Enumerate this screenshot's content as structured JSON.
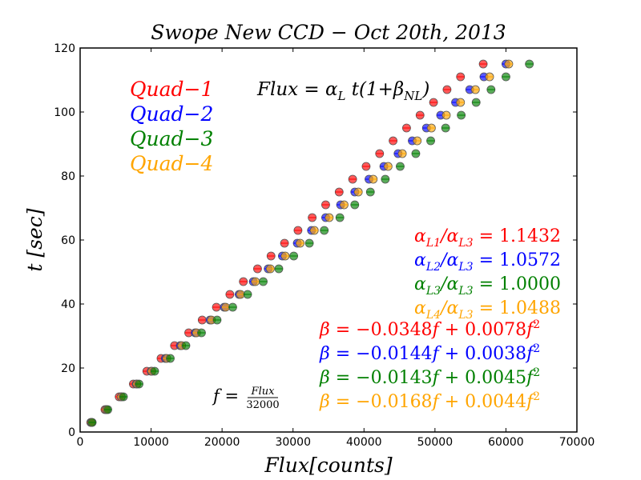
{
  "chart_data": {
    "type": "scatter",
    "title": "Swope New CCD − Oct 20th, 2013",
    "xlabel": "Flux[counts]",
    "ylabel": "t [sec]",
    "xlim": [
      0,
      70000
    ],
    "ylim": [
      0,
      120
    ],
    "xticks": [
      0,
      10000,
      20000,
      30000,
      40000,
      50000,
      60000,
      70000
    ],
    "yticks": [
      0,
      20,
      40,
      60,
      80,
      100,
      120
    ],
    "grid": false,
    "legend": {
      "placement": "top-left",
      "entries": [
        {
          "label": "Quad−1",
          "color": "#ff0000"
        },
        {
          "label": "Quad−2",
          "color": "#0000ff"
        },
        {
          "label": "Quad−3",
          "color": "#008000"
        },
        {
          "label": "Quad−4",
          "color": "#ffa500"
        }
      ]
    },
    "annotations": {
      "model": {
        "lhs": "Flux",
        "rhs_prefix": "α",
        "rhs_sub": "L",
        "rhs_mid": " t(1+β",
        "rhs_sub2": "NL",
        "rhs_end": ")"
      },
      "ratios": [
        {
          "num": "L1",
          "den": "L3",
          "value": "1.1432",
          "color": "#ff0000"
        },
        {
          "num": "L2",
          "den": "L3",
          "value": "1.0572",
          "color": "#0000ff"
        },
        {
          "num": "L3",
          "den": "L3",
          "value": "1.0000",
          "color": "#008000"
        },
        {
          "num": "L4",
          "den": "L3",
          "value": "1.0488",
          "color": "#ffa500"
        }
      ],
      "betas": [
        {
          "a": "0.0348",
          "b": "0.0078",
          "color": "#ff0000"
        },
        {
          "a": "0.0144",
          "b": "0.0038",
          "color": "#0000ff"
        },
        {
          "a": "0.0143",
          "b": "0.0045",
          "color": "#008000"
        },
        {
          "a": "0.0168",
          "b": "0.0044",
          "color": "#ffa500"
        }
      ],
      "f_def": {
        "lhs": "f",
        "numerator": "Flux",
        "denominator": "32000"
      }
    },
    "x_t": [
      3,
      7,
      11,
      15,
      19,
      23,
      27,
      31,
      35,
      39,
      43,
      47,
      51,
      55,
      59,
      63,
      67,
      71,
      75,
      79,
      83,
      87,
      91,
      95,
      99,
      103,
      107,
      111,
      115
    ],
    "series": [
      {
        "name": "Quad−1",
        "color": "#ff0000",
        "flux": [
          1500,
          3500,
          5500,
          7500,
          9400,
          11400,
          13300,
          15300,
          17200,
          19200,
          21100,
          23000,
          25000,
          26900,
          28800,
          30700,
          32700,
          34600,
          36500,
          38400,
          40300,
          42200,
          44100,
          46000,
          47900,
          49800,
          51700,
          53600,
          56800
        ]
      },
      {
        "name": "Quad−2",
        "color": "#0000ff",
        "flux": [
          1600,
          3700,
          5800,
          7900,
          10000,
          12000,
          14100,
          16200,
          18300,
          20300,
          22400,
          24400,
          26500,
          28500,
          30600,
          32600,
          34600,
          36700,
          38700,
          40700,
          42800,
          44800,
          46800,
          48800,
          50800,
          52900,
          54900,
          56900,
          60000
        ]
      },
      {
        "name": "Quad−3",
        "color": "#008000",
        "flux": [
          1700,
          3900,
          6100,
          8300,
          10500,
          12700,
          14900,
          17100,
          19300,
          21500,
          23600,
          25800,
          28000,
          30100,
          32300,
          34400,
          36600,
          38700,
          40900,
          43000,
          45100,
          47300,
          49400,
          51500,
          53700,
          55800,
          57900,
          60000,
          63300
        ]
      },
      {
        "name": "Quad−4",
        "color": "#ffa500",
        "flux": [
          1600,
          3700,
          5800,
          8000,
          10100,
          12200,
          14300,
          16400,
          18500,
          20500,
          22600,
          24700,
          26800,
          28900,
          31000,
          33000,
          35100,
          37200,
          39200,
          41300,
          43400,
          45400,
          47500,
          49500,
          51600,
          53600,
          55700,
          57700,
          60400
        ]
      }
    ]
  }
}
